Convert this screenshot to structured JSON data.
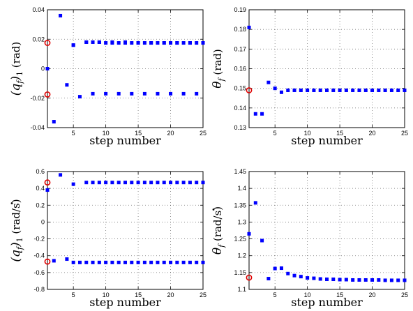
{
  "chart_data": [
    {
      "type": "scatter",
      "panel": "top-left",
      "ylabel": {
        "base": "(q",
        "sub": "f",
        "close": ")",
        "index": "1",
        "unit": "(rad)",
        "dotted": false
      },
      "xlabel": "step number",
      "xlim": [
        1,
        25
      ],
      "ylim": [
        -0.04,
        0.04
      ],
      "xticks": [
        5,
        10,
        15,
        20,
        25
      ],
      "yticks": [
        -0.04,
        -0.02,
        0,
        0.02,
        0.04
      ],
      "ytick_labels": [
        "-0.04",
        "-0.02",
        "0",
        "0.02",
        "0.04"
      ],
      "grid": true,
      "series": [
        {
          "marker": "square",
          "color": "#0000ff",
          "x": [
            1,
            2,
            3,
            4,
            5,
            6,
            7,
            8,
            9,
            10,
            11,
            12,
            13,
            14,
            15,
            16,
            17,
            18,
            19,
            20,
            21,
            22,
            23,
            24,
            25,
            5,
            7,
            8,
            9,
            10,
            11,
            12,
            13,
            14,
            15,
            16,
            17,
            18,
            19,
            20,
            21,
            22,
            23,
            24,
            25
          ],
          "y": [
            0,
            -0.036,
            0.036,
            -0.011,
            0.016,
            -0.019,
            0.018,
            -0.017,
            0.018,
            -0.017,
            0.018,
            -0.017,
            0.018,
            -0.017,
            0.0175,
            -0.017,
            0.0175,
            -0.017,
            0.0175,
            -0.017,
            0.0175,
            -0.017,
            0.0175,
            -0.017,
            0.0175,
            0.016,
            0.018,
            0.018,
            0.018,
            0.0175,
            0.0175,
            0.0175,
            0.0175,
            0.0175,
            0.0175,
            0.0175,
            0.0175,
            0.0175,
            0.0175,
            0.0175,
            0.0175,
            0.0175,
            0.0175,
            0.0175,
            0.0175
          ]
        },
        {
          "marker": "circle",
          "color": "#e00000",
          "x": [
            1,
            1
          ],
          "y": [
            0.0175,
            -0.0175
          ]
        }
      ]
    },
    {
      "type": "scatter",
      "panel": "top-right",
      "ylabel": {
        "base": "θ",
        "sub": "f",
        "close": "",
        "index": "",
        "unit": "(rad)",
        "dotted": false
      },
      "xlabel": "step number",
      "xlim": [
        1,
        25
      ],
      "ylim": [
        0.13,
        0.19
      ],
      "xticks": [
        5,
        10,
        15,
        20,
        25
      ],
      "yticks": [
        0.13,
        0.14,
        0.15,
        0.16,
        0.17,
        0.18,
        0.19
      ],
      "ytick_labels": [
        "0.13",
        "0.14",
        "0.15",
        "0.16",
        "0.17",
        "0.18",
        "0.19"
      ],
      "grid": true,
      "series": [
        {
          "marker": "square",
          "color": "#0000ff",
          "x": [
            1,
            2,
            3,
            4,
            5,
            6,
            7,
            8,
            9,
            10,
            11,
            12,
            13,
            14,
            15,
            16,
            17,
            18,
            19,
            20,
            21,
            22,
            23,
            24,
            25
          ],
          "y": [
            0.181,
            0.137,
            0.137,
            0.153,
            0.15,
            0.148,
            0.149,
            0.149,
            0.149,
            0.149,
            0.149,
            0.149,
            0.149,
            0.149,
            0.149,
            0.149,
            0.149,
            0.149,
            0.149,
            0.149,
            0.149,
            0.149,
            0.149,
            0.149,
            0.149
          ]
        },
        {
          "marker": "circle",
          "color": "#e00000",
          "x": [
            1
          ],
          "y": [
            0.149
          ]
        }
      ]
    },
    {
      "type": "scatter",
      "panel": "bottom-left",
      "ylabel": {
        "base": "(q",
        "sub": "f",
        "close": ")",
        "index": "1",
        "unit": "(rad/s)",
        "dotted": true
      },
      "xlabel": "step number",
      "xlim": [
        1,
        25
      ],
      "ylim": [
        -0.8,
        0.6
      ],
      "xticks": [
        5,
        10,
        15,
        20,
        25
      ],
      "yticks": [
        -0.8,
        -0.6,
        -0.4,
        -0.2,
        0,
        0.2,
        0.4,
        0.6
      ],
      "ytick_labels": [
        "-0.8",
        "-0.6",
        "-0.4",
        "-0.2",
        "0",
        "0.2",
        "0.4",
        "0.6"
      ],
      "grid": true,
      "series": [
        {
          "marker": "square",
          "color": "#0000ff",
          "x": [
            1,
            2,
            3,
            4,
            5,
            6,
            7,
            8,
            9,
            10,
            11,
            12,
            13,
            14,
            15,
            16,
            17,
            18,
            19,
            20,
            21,
            22,
            23,
            24,
            25,
            5,
            7,
            8,
            9,
            10,
            11,
            12,
            13,
            14,
            15,
            16,
            17,
            18,
            19,
            20,
            21,
            22,
            23,
            24,
            25
          ],
          "y": [
            0.38,
            -0.46,
            0.56,
            -0.44,
            -0.48,
            -0.48,
            -0.48,
            -0.48,
            -0.48,
            -0.48,
            -0.48,
            -0.48,
            -0.48,
            -0.48,
            -0.48,
            -0.48,
            -0.48,
            -0.48,
            -0.48,
            -0.48,
            -0.48,
            -0.48,
            -0.48,
            -0.48,
            -0.48,
            0.45,
            0.47,
            0.47,
            0.47,
            0.47,
            0.47,
            0.47,
            0.47,
            0.47,
            0.47,
            0.47,
            0.47,
            0.47,
            0.47,
            0.47,
            0.47,
            0.47,
            0.47,
            0.47,
            0.47
          ]
        },
        {
          "marker": "circle",
          "color": "#e00000",
          "x": [
            1,
            1
          ],
          "y": [
            0.47,
            -0.47
          ]
        }
      ]
    },
    {
      "type": "scatter",
      "panel": "bottom-right",
      "ylabel": {
        "base": "θ",
        "sub": "f",
        "close": "",
        "index": "",
        "unit": "(rad/s)",
        "dotted": true
      },
      "xlabel": "step number",
      "xlim": [
        1,
        25
      ],
      "ylim": [
        1.1,
        1.45
      ],
      "xticks": [
        5,
        10,
        15,
        20,
        25
      ],
      "yticks": [
        1.1,
        1.15,
        1.2,
        1.25,
        1.3,
        1.35,
        1.4,
        1.45
      ],
      "ytick_labels": [
        "1.1",
        "1.15",
        "1.2",
        "1.25",
        "1.3",
        "1.35",
        "1.4",
        "1.45"
      ],
      "grid": true,
      "series": [
        {
          "marker": "square",
          "color": "#0000ff",
          "x": [
            1,
            2,
            3,
            4,
            5,
            6,
            7,
            8,
            9,
            10,
            11,
            12,
            13,
            14,
            15,
            16,
            17,
            18,
            19,
            20,
            21,
            22,
            23,
            24,
            25
          ],
          "y": [
            1.265,
            1.357,
            1.245,
            1.132,
            1.162,
            1.163,
            1.147,
            1.141,
            1.138,
            1.134,
            1.133,
            1.131,
            1.13,
            1.13,
            1.129,
            1.129,
            1.128,
            1.128,
            1.128,
            1.128,
            1.128,
            1.127,
            1.127,
            1.127,
            1.127
          ]
        },
        {
          "marker": "circle",
          "color": "#e00000",
          "x": [
            1
          ],
          "y": [
            1.135
          ]
        }
      ]
    }
  ]
}
